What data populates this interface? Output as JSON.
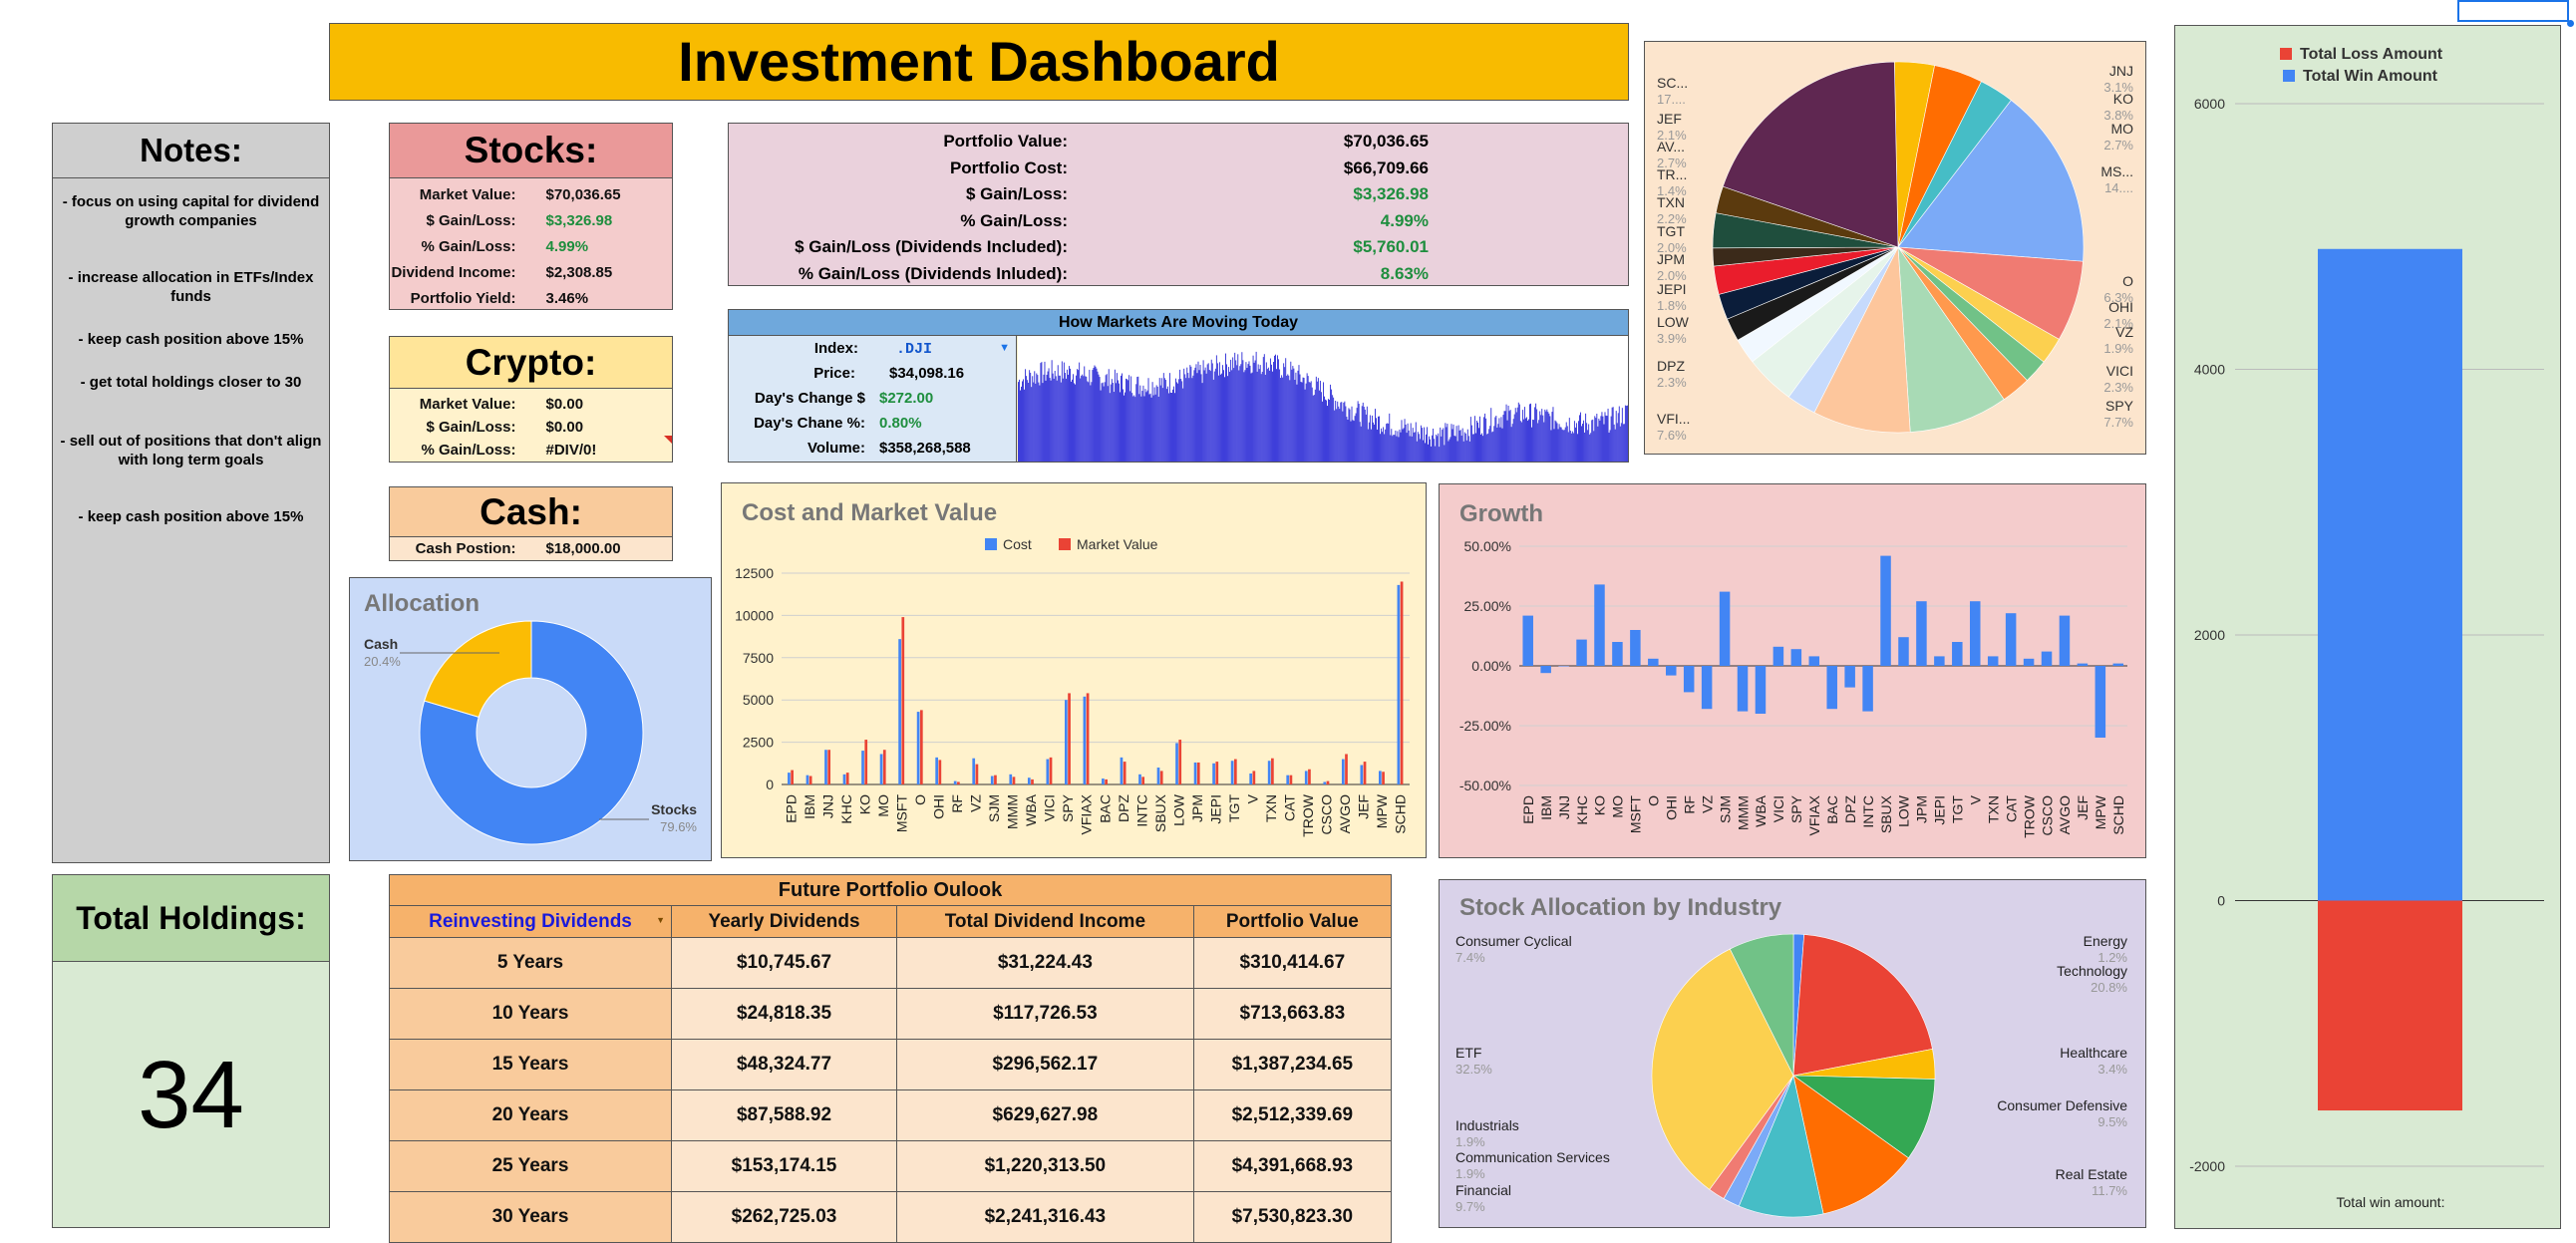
{
  "title": "Investment Dashboard",
  "notes": {
    "heading": "Notes:",
    "items": [
      "- focus on using capital for dividend growth companies",
      "- increase allocation in ETFs/Index funds",
      "- keep cash position above 15%",
      "- get total holdings closer to 30",
      "- sell out of positions that don't align with long term goals",
      "- keep cash position above 15%"
    ]
  },
  "stocks": {
    "heading": "Stocks:",
    "rows": [
      {
        "label": "Market Value:",
        "value": "$70,036.65"
      },
      {
        "label": "$ Gain/Loss:",
        "value": "$3,326.98"
      },
      {
        "label": "% Gain/Loss:",
        "value": "4.99%"
      },
      {
        "label": "Dividend Income:",
        "value": "$2,308.85"
      },
      {
        "label": "Portfolio Yield:",
        "value": "3.46%"
      }
    ]
  },
  "crypto": {
    "heading": "Crypto:",
    "rows": [
      {
        "label": "Market Value:",
        "value": "$0.00"
      },
      {
        "label": "$ Gain/Loss:",
        "value": "$0.00"
      },
      {
        "label": "% Gain/Loss:",
        "value": "#DIV/0!"
      }
    ]
  },
  "cash": {
    "heading": "Cash:",
    "label": "Cash Postion:",
    "value": "$18,000.00"
  },
  "portfolio": {
    "rows": [
      {
        "label": "Portfolio Value:",
        "value": "$70,036.65"
      },
      {
        "label": "Portfolio Cost:",
        "value": "$66,709.66"
      },
      {
        "label": "$ Gain/Loss:",
        "value": "$3,326.98"
      },
      {
        "label": "% Gain/Loss:",
        "value": "4.99%"
      },
      {
        "label": "$ Gain/Loss (Dividends Included):",
        "value": "$5,760.01"
      },
      {
        "label": "% Gain/Loss (Dividends Inluded):",
        "value": "8.63%"
      }
    ]
  },
  "markets": {
    "heading": "How Markets Are Moving Today",
    "index_label": "Index:",
    "index_value": ".DJI",
    "rows": [
      {
        "label": "Price:",
        "value": "$34,098.16"
      },
      {
        "label": "Day's Change $",
        "value": "$272.00"
      },
      {
        "label": "Day's Chane %:",
        "value": "0.80%"
      },
      {
        "label": "Volume:",
        "value": "$358,268,588"
      }
    ]
  },
  "total_holdings": {
    "heading": "Total Holdings:",
    "value": "34"
  },
  "future": {
    "heading": "Future Portfolio Oulook",
    "dropdown": "Reinvesting Dividends",
    "columns": [
      "Yearly Dividends",
      "Total Dividend Income",
      "Portfolio Value"
    ],
    "rows": [
      [
        "5 Years",
        "$10,745.67",
        "$31,224.43",
        "$310,414.67"
      ],
      [
        "10 Years",
        "$24,818.35",
        "$117,726.53",
        "$713,663.83"
      ],
      [
        "15 Years",
        "$48,324.77",
        "$296,562.17",
        "$1,387,234.65"
      ],
      [
        "20 Years",
        "$87,588.92",
        "$629,627.98",
        "$2,512,339.69"
      ],
      [
        "25 Years",
        "$153,174.15",
        "$1,220,313.50",
        "$4,391,668.93"
      ],
      [
        "30 Years",
        "$262,725.03",
        "$2,241,316.43",
        "$7,530,823.30"
      ]
    ]
  },
  "colors": {
    "blue": "#4285f4",
    "red": "#ea4335",
    "yellow": "#fbbc04",
    "green": "#34a853",
    "title_bg": "#f8bb00",
    "notes_bg": "#cfcfcf",
    "green_bg": "#d9ead3",
    "stocks_bg": "#f4cccc",
    "stocks_head": "#ea9999",
    "crypto_bg": "#fff2cc",
    "crypto_head": "#ffe599",
    "cash_bg": "#fce5cd",
    "cash_head": "#f9cb9c",
    "portfolio_bg": "#ead1dc",
    "alloc_bg": "#c9daf8",
    "cost_bg": "#fff2cc",
    "growth_bg": "#f4cccc",
    "industry_bg": "#d9d2e9",
    "pie_bg": "#fce5cd"
  },
  "chart_data": [
    {
      "type": "pie",
      "title": "Allocation",
      "donut": true,
      "slices": [
        {
          "label": "Stocks",
          "value": 79.6,
          "pct": "79.6%",
          "color": "#4285f4"
        },
        {
          "label": "Cash",
          "value": 20.4,
          "pct": "20.4%",
          "color": "#fbbc04"
        }
      ]
    },
    {
      "type": "bar",
      "title": "Cost and Market Value",
      "categories": [
        "EPD",
        "IBM",
        "JNJ",
        "KHC",
        "KO",
        "MO",
        "MSFT",
        "O",
        "OHI",
        "RF",
        "VZ",
        "SJM",
        "MMM",
        "WBA",
        "VICI",
        "SPY",
        "VFIAX",
        "BAC",
        "DPZ",
        "INTC",
        "SBUX",
        "LOW",
        "JPM",
        "JEPI",
        "TGT",
        "V",
        "TXN",
        "CAT",
        "TROW",
        "CSCO",
        "AVGO",
        "JEF",
        "MPW",
        "SCHD"
      ],
      "series": [
        {
          "name": "Cost",
          "color": "#4285f4",
          "values": [
            700,
            550,
            2050,
            600,
            2000,
            1800,
            8600,
            4300,
            1600,
            200,
            1550,
            500,
            600,
            400,
            1500,
            5000,
            5200,
            350,
            1600,
            600,
            1000,
            2450,
            1300,
            1250,
            1400,
            650,
            1400,
            550,
            800,
            150,
            1500,
            1150,
            800,
            11800
          ]
        },
        {
          "name": "Market Value",
          "color": "#ea4335",
          "values": [
            850,
            500,
            2050,
            700,
            2650,
            2050,
            9900,
            4400,
            1450,
            150,
            1200,
            550,
            450,
            300,
            1600,
            5400,
            5400,
            300,
            1350,
            450,
            800,
            2650,
            1300,
            1350,
            1500,
            800,
            1550,
            550,
            900,
            200,
            1800,
            1350,
            750,
            12000
          ]
        }
      ],
      "ylim": [
        0,
        12500
      ],
      "yticks": [
        "0",
        "2500",
        "5000",
        "7500",
        "10000",
        "12500"
      ],
      "legend": "top"
    },
    {
      "type": "bar",
      "title": "Growth",
      "categories": [
        "EPD",
        "IBM",
        "JNJ",
        "KHC",
        "KO",
        "MO",
        "MSFT",
        "O",
        "OHI",
        "RF",
        "VZ",
        "SJM",
        "MMM",
        "WBA",
        "VICI",
        "SPY",
        "VFIAX",
        "BAC",
        "DPZ",
        "INTC",
        "SBUX",
        "LOW",
        "JPM",
        "JEPI",
        "TGT",
        "V",
        "TXN",
        "CAT",
        "TROW",
        "CSCO",
        "AVGO",
        "JEF",
        "MPW",
        "SCHD"
      ],
      "series": [
        {
          "name": "",
          "color": "#4285f4",
          "values": [
            21,
            -3,
            0,
            11,
            34,
            10,
            15,
            3,
            -4,
            -11,
            -18,
            31,
            -19,
            -20,
            8,
            7,
            4,
            -18,
            -9,
            -19,
            46,
            12,
            27,
            4,
            10,
            27,
            4,
            22,
            3,
            6,
            21,
            1,
            -30,
            1
          ]
        }
      ],
      "ylim": [
        -50,
        50
      ],
      "yticks": [
        "50.00%",
        "25.00%",
        "0.00%",
        "-25.00%",
        "-50.00%"
      ]
    },
    {
      "type": "pie",
      "title": "",
      "slices": [
        {
          "label": "JNJ",
          "pct": "3.1%",
          "value": 3.1,
          "color": "#fbbc04"
        },
        {
          "label": "KO",
          "pct": "3.8%",
          "value": 3.8,
          "color": "#ff6d01"
        },
        {
          "label": "MO",
          "pct": "2.7%",
          "value": 2.7,
          "color": "#46bdc6"
        },
        {
          "label": "MS...",
          "pct": "14....",
          "value": 14.1,
          "color": "#7baaf7"
        },
        {
          "label": "O",
          "pct": "6.3%",
          "value": 6.3,
          "color": "#f07b72"
        },
        {
          "label": "OHI",
          "pct": "2.1%",
          "value": 2.1,
          "color": "#fcd04f"
        },
        {
          "label": "VZ",
          "pct": "1.9%",
          "value": 1.9,
          "color": "#71c287"
        },
        {
          "label": "VICI",
          "pct": "2.3%",
          "value": 2.3,
          "color": "#ff994d"
        },
        {
          "label": "SPY",
          "pct": "7.7%",
          "value": 7.7,
          "color": "#a8dab5"
        },
        {
          "label": "VFI...",
          "pct": "7.6%",
          "value": 7.6,
          "color": "#fdc69c"
        },
        {
          "label": "DPZ",
          "pct": "2.3%",
          "value": 2.3,
          "color": "#c6dafc"
        },
        {
          "label": "LOW",
          "pct": "3.9%",
          "value": 3.9,
          "color": "#e6f4ea"
        },
        {
          "label": "JPM",
          "pct": "2.0%",
          "value": 2.0,
          "color": "#f1f8ff"
        },
        {
          "label": "JEPI",
          "pct": "1.8%",
          "value": 1.8,
          "color": "#1a1a1a"
        },
        {
          "label": "TGT",
          "pct": "2.0%",
          "value": 2.0,
          "color": "#0b1d3a"
        },
        {
          "label": "TXN",
          "pct": "2.2%",
          "value": 2.2,
          "color": "#ea1d2c"
        },
        {
          "label": "TR...",
          "pct": "1.4%",
          "value": 1.4,
          "color": "#3b2a1a"
        },
        {
          "label": "AV...",
          "pct": "2.7%",
          "value": 2.7,
          "color": "#1f4e3d"
        },
        {
          "label": "JEF",
          "pct": "2.1%",
          "value": 2.1,
          "color": "#5b3a0e"
        },
        {
          "label": "SC...",
          "pct": "17....",
          "value": 17.3,
          "color": "#5f2751"
        }
      ],
      "labels_left": [
        "SC...",
        "JEF",
        "AV...",
        "TR...",
        "TXN",
        "TGT",
        "JPM",
        "JEPI",
        "LOW",
        "DPZ",
        "VFI..."
      ],
      "labels_right": [
        "JNJ",
        "KO",
        "MO",
        "MS...",
        "O",
        "OHI",
        "VZ",
        "VICI",
        "SPY"
      ]
    },
    {
      "type": "bar",
      "title": "",
      "categories": [
        ""
      ],
      "series": [
        {
          "name": "Total Loss Amount",
          "color": "#ea4335",
          "values": [
            -1580
          ]
        },
        {
          "name": "Total Win Amount",
          "color": "#4285f4",
          "values": [
            4906
          ]
        }
      ],
      "ylim": [
        -2000,
        6000
      ],
      "yticks": [
        "6000",
        "4000",
        "2000",
        "0",
        "-2000"
      ],
      "xlabel": "Total win amount:",
      "legend": "top"
    },
    {
      "type": "pie",
      "title": "Stock Allocation by Industry",
      "slices": [
        {
          "label": "Energy",
          "pct": "1.2%",
          "value": 1.2,
          "color": "#4285f4"
        },
        {
          "label": "Technology",
          "pct": "20.8%",
          "value": 20.8,
          "color": "#ea4335"
        },
        {
          "label": "Healthcare",
          "pct": "3.4%",
          "value": 3.4,
          "color": "#fbbc04"
        },
        {
          "label": "Consumer Defensive",
          "pct": "9.5%",
          "value": 9.5,
          "color": "#34a853"
        },
        {
          "label": "Real Estate",
          "pct": "11.7%",
          "value": 11.7,
          "color": "#ff6d01"
        },
        {
          "label": "Financial",
          "pct": "9.7%",
          "value": 9.7,
          "color": "#46bdc6"
        },
        {
          "label": "Communication Services",
          "pct": "1.9%",
          "value": 1.9,
          "color": "#7baaf7"
        },
        {
          "label": "Industrials",
          "pct": "1.9%",
          "value": 1.9,
          "color": "#f07b72"
        },
        {
          "label": "ETF",
          "pct": "32.5%",
          "value": 32.5,
          "color": "#fcd04f"
        },
        {
          "label": "Consumer Cyclical",
          "pct": "7.4%",
          "value": 7.4,
          "color": "#71c287"
        }
      ]
    }
  ]
}
